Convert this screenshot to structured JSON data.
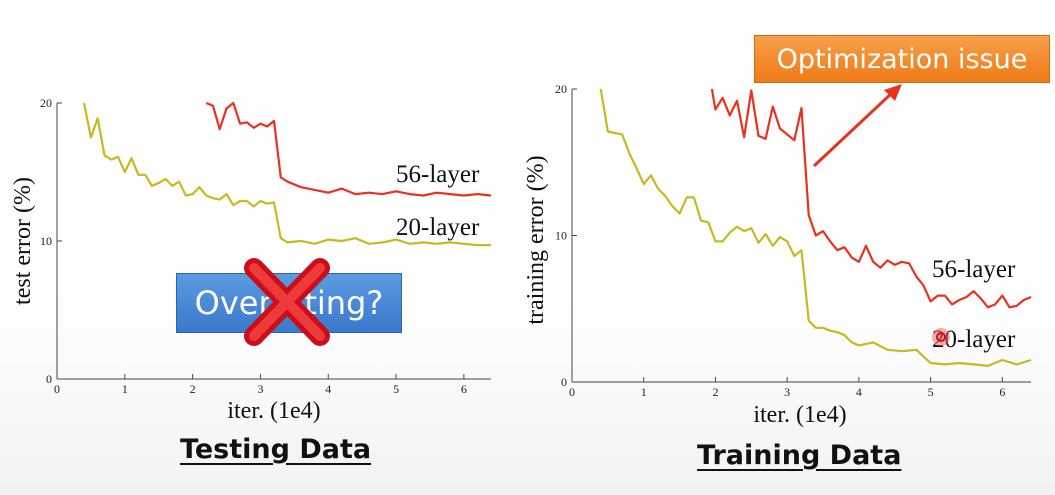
{
  "chart_data": [
    {
      "type": "line",
      "title": "",
      "xlabel": "iter. (1e4)",
      "ylabel": "test error (%)",
      "xlim": [
        0,
        6.4
      ],
      "ylim": [
        0,
        20
      ],
      "xticks": [
        0,
        1,
        2,
        3,
        4,
        5,
        6
      ],
      "yticks": [
        0,
        10,
        20
      ],
      "series": [
        {
          "name": "56-layer",
          "color": "#e8321e",
          "x": [
            2.2,
            2.3,
            2.4,
            2.5,
            2.6,
            2.7,
            2.8,
            2.9,
            3.0,
            3.1,
            3.2,
            3.3,
            3.4,
            3.6,
            3.8,
            4.0,
            4.2,
            4.4,
            4.6,
            4.8,
            5.0,
            5.2,
            5.4,
            5.6,
            5.8,
            6.0,
            6.2,
            6.4
          ],
          "y": [
            20.0,
            19.8,
            18.1,
            19.6,
            20.0,
            18.5,
            18.6,
            18.2,
            18.5,
            18.3,
            18.7,
            14.6,
            14.3,
            13.9,
            13.7,
            13.5,
            13.8,
            13.4,
            13.5,
            13.4,
            13.6,
            13.4,
            13.3,
            13.5,
            13.4,
            13.3,
            13.4,
            13.3
          ]
        },
        {
          "name": "20-layer",
          "color": "#c9b820",
          "x": [
            0.4,
            0.5,
            0.6,
            0.7,
            0.8,
            0.9,
            1.0,
            1.1,
            1.2,
            1.3,
            1.4,
            1.5,
            1.6,
            1.7,
            1.8,
            1.9,
            2.0,
            2.1,
            2.2,
            2.3,
            2.4,
            2.5,
            2.6,
            2.7,
            2.8,
            2.9,
            3.0,
            3.1,
            3.2,
            3.3,
            3.4,
            3.6,
            3.8,
            4.0,
            4.2,
            4.4,
            4.6,
            4.8,
            5.0,
            5.2,
            5.4,
            5.6,
            5.8,
            6.0,
            6.2,
            6.4
          ],
          "y": [
            20.0,
            17.5,
            18.9,
            16.2,
            15.9,
            16.1,
            15.0,
            16.0,
            14.8,
            14.8,
            14.0,
            14.2,
            14.5,
            14.0,
            14.3,
            13.3,
            13.4,
            13.9,
            13.3,
            13.1,
            13.0,
            13.4,
            12.6,
            12.9,
            12.9,
            12.5,
            12.9,
            12.7,
            12.8,
            10.2,
            9.9,
            10.0,
            9.8,
            10.1,
            10.0,
            10.2,
            9.8,
            9.9,
            10.1,
            9.8,
            9.9,
            9.8,
            9.9,
            9.8,
            9.7,
            9.7
          ]
        }
      ],
      "annotations": [
        {
          "text": "56-layer",
          "series": "56-layer"
        },
        {
          "text": "20-layer",
          "series": "20-layer"
        },
        {
          "text": "Overfitting?",
          "crossed_out": true
        }
      ]
    },
    {
      "type": "line",
      "title": "",
      "xlabel": "iter. (1e4)",
      "ylabel": "training error (%)",
      "xlim": [
        0,
        6.4
      ],
      "ylim": [
        0,
        20
      ],
      "xticks": [
        0,
        1,
        2,
        3,
        4,
        5,
        6
      ],
      "yticks": [
        0,
        10,
        20
      ],
      "series": [
        {
          "name": "56-layer",
          "color": "#e8321e",
          "x": [
            1.95,
            2.0,
            2.1,
            2.2,
            2.3,
            2.4,
            2.5,
            2.6,
            2.7,
            2.8,
            2.9,
            3.0,
            3.1,
            3.2,
            3.3,
            3.4,
            3.5,
            3.6,
            3.7,
            3.8,
            3.9,
            4.0,
            4.1,
            4.2,
            4.3,
            4.4,
            4.5,
            4.6,
            4.7,
            4.8,
            4.9,
            5.0,
            5.1,
            5.2,
            5.3,
            5.4,
            5.5,
            5.6,
            5.7,
            5.8,
            5.9,
            6.0,
            6.1,
            6.2,
            6.3,
            6.4
          ],
          "y": [
            20.0,
            18.6,
            19.4,
            18.2,
            19.2,
            16.7,
            19.9,
            16.8,
            16.6,
            18.8,
            17.3,
            16.9,
            16.5,
            18.7,
            11.4,
            10.0,
            10.3,
            9.6,
            9.0,
            9.2,
            8.5,
            8.2,
            9.3,
            8.2,
            7.8,
            8.3,
            8.0,
            8.2,
            8.1,
            7.2,
            6.6,
            5.5,
            5.9,
            5.9,
            5.3,
            5.6,
            5.8,
            6.2,
            5.7,
            5.1,
            5.3,
            5.9,
            5.1,
            5.2,
            5.6,
            5.8
          ]
        },
        {
          "name": "20-layer",
          "color": "#c9b820",
          "x": [
            0.4,
            0.5,
            0.6,
            0.7,
            0.8,
            0.9,
            1.0,
            1.1,
            1.2,
            1.3,
            1.4,
            1.5,
            1.6,
            1.7,
            1.8,
            1.9,
            2.0,
            2.1,
            2.2,
            2.3,
            2.4,
            2.5,
            2.6,
            2.7,
            2.8,
            2.9,
            3.0,
            3.1,
            3.2,
            3.3,
            3.4,
            3.5,
            3.6,
            3.7,
            3.8,
            3.9,
            4.0,
            4.2,
            4.4,
            4.6,
            4.8,
            5.0,
            5.2,
            5.4,
            5.6,
            5.8,
            6.0,
            6.2,
            6.4
          ],
          "y": [
            20.0,
            17.1,
            17.0,
            16.9,
            15.6,
            14.6,
            13.5,
            14.1,
            13.2,
            12.7,
            12.0,
            11.5,
            12.6,
            12.6,
            11.0,
            10.9,
            9.6,
            9.6,
            10.2,
            10.6,
            10.3,
            10.5,
            9.5,
            10.1,
            9.3,
            9.9,
            9.6,
            8.6,
            9.0,
            4.2,
            3.7,
            3.7,
            3.5,
            3.4,
            3.2,
            2.7,
            2.5,
            2.7,
            2.2,
            2.1,
            2.2,
            1.3,
            1.2,
            1.3,
            1.2,
            1.1,
            1.5,
            1.2,
            1.5
          ]
        }
      ],
      "annotations": [
        {
          "text": "56-layer",
          "series": "56-layer"
        },
        {
          "text": "20-layer",
          "series": "20-layer"
        },
        {
          "text": "Optimization issue",
          "arrow": true
        }
      ]
    }
  ],
  "captions": {
    "left": "Testing Data",
    "right": "Training Data"
  },
  "callouts": {
    "optimization": "Optimization issue",
    "overfitting": "Overfitting?"
  }
}
